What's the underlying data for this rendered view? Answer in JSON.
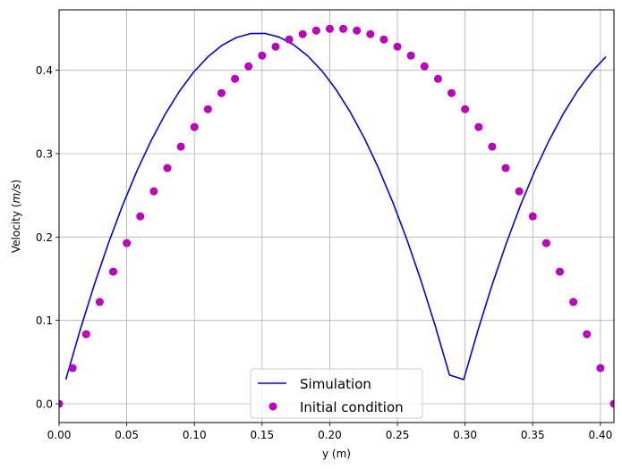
{
  "chart_data": {
    "type": "line",
    "title": "",
    "xlabel": "y (m)",
    "ylabel_prefix": "Velocity (",
    "ylabel_unit": "m/s",
    "ylabel_suffix": ")",
    "xlim": [
      0.0,
      0.41
    ],
    "ylim": [
      -0.0225,
      0.4725
    ],
    "grid": true,
    "legend_position": "lower center",
    "x_ticks": [
      0.0,
      0.05,
      0.1,
      0.15,
      0.2,
      0.25,
      0.3,
      0.35,
      0.4
    ],
    "x_tick_labels": [
      "0.00",
      "0.05",
      "0.10",
      "0.15",
      "0.20",
      "0.25",
      "0.30",
      "0.35",
      "0.40"
    ],
    "y_ticks": [
      0.0,
      0.1,
      0.2,
      0.3,
      0.4
    ],
    "y_tick_labels": [
      "0.0",
      "0.1",
      "0.2",
      "0.3",
      "0.4"
    ],
    "series": [
      {
        "name": "Simulation",
        "kind": "line",
        "color": "#0000ff",
        "x": [
          0.005,
          0.0155,
          0.026,
          0.0365,
          0.047,
          0.0575,
          0.068,
          0.0785,
          0.089,
          0.0995,
          0.11,
          0.1205,
          0.131,
          0.1415,
          0.152,
          0.1625,
          0.173,
          0.1835,
          0.194,
          0.2045,
          0.215,
          0.2255,
          0.236,
          0.2465,
          0.257,
          0.2675,
          0.278,
          0.2885,
          0.299,
          0.3095,
          0.32,
          0.3305,
          0.341,
          0.3515,
          0.362,
          0.3725,
          0.383,
          0.3935,
          0.404
        ],
        "y": [
          0.0291,
          0.0881,
          0.1427,
          0.1927,
          0.2382,
          0.2792,
          0.3156,
          0.3476,
          0.375,
          0.3979,
          0.4162,
          0.43,
          0.4393,
          0.444,
          0.4442,
          0.4399,
          0.431,
          0.4176,
          0.3997,
          0.3773,
          0.3503,
          0.3188,
          0.2827,
          0.2421,
          0.197,
          0.1474,
          0.0932,
          0.0345,
          0.0291,
          0.0881,
          0.1427,
          0.1927,
          0.2382,
          0.2792,
          0.3156,
          0.3476,
          0.375,
          0.3979,
          0.4162
        ]
      },
      {
        "name": "Initial condition",
        "kind": "scatter",
        "color": "#bf00bf",
        "x": [
          0.0,
          0.01,
          0.02,
          0.03,
          0.04,
          0.05,
          0.06,
          0.07,
          0.08,
          0.09,
          0.1,
          0.11,
          0.12,
          0.13,
          0.14,
          0.15,
          0.16,
          0.17,
          0.18,
          0.19,
          0.2,
          0.21,
          0.22,
          0.23,
          0.24,
          0.25,
          0.26,
          0.27,
          0.28,
          0.29,
          0.3,
          0.31,
          0.32,
          0.33,
          0.34,
          0.35,
          0.36,
          0.37,
          0.38,
          0.39,
          0.4,
          0.41
        ],
        "y": [
          0.0,
          0.0428,
          0.0835,
          0.1221,
          0.1585,
          0.1927,
          0.2248,
          0.2548,
          0.2827,
          0.3084,
          0.3319,
          0.3533,
          0.3726,
          0.3897,
          0.4047,
          0.4176,
          0.4283,
          0.4369,
          0.4433,
          0.4476,
          0.4497,
          0.4497,
          0.4476,
          0.4433,
          0.4369,
          0.4283,
          0.4176,
          0.4047,
          0.3897,
          0.3726,
          0.3533,
          0.3319,
          0.3084,
          0.2827,
          0.2548,
          0.2248,
          0.1927,
          0.1585,
          0.1221,
          0.0835,
          0.0428,
          0.0
        ]
      }
    ]
  }
}
